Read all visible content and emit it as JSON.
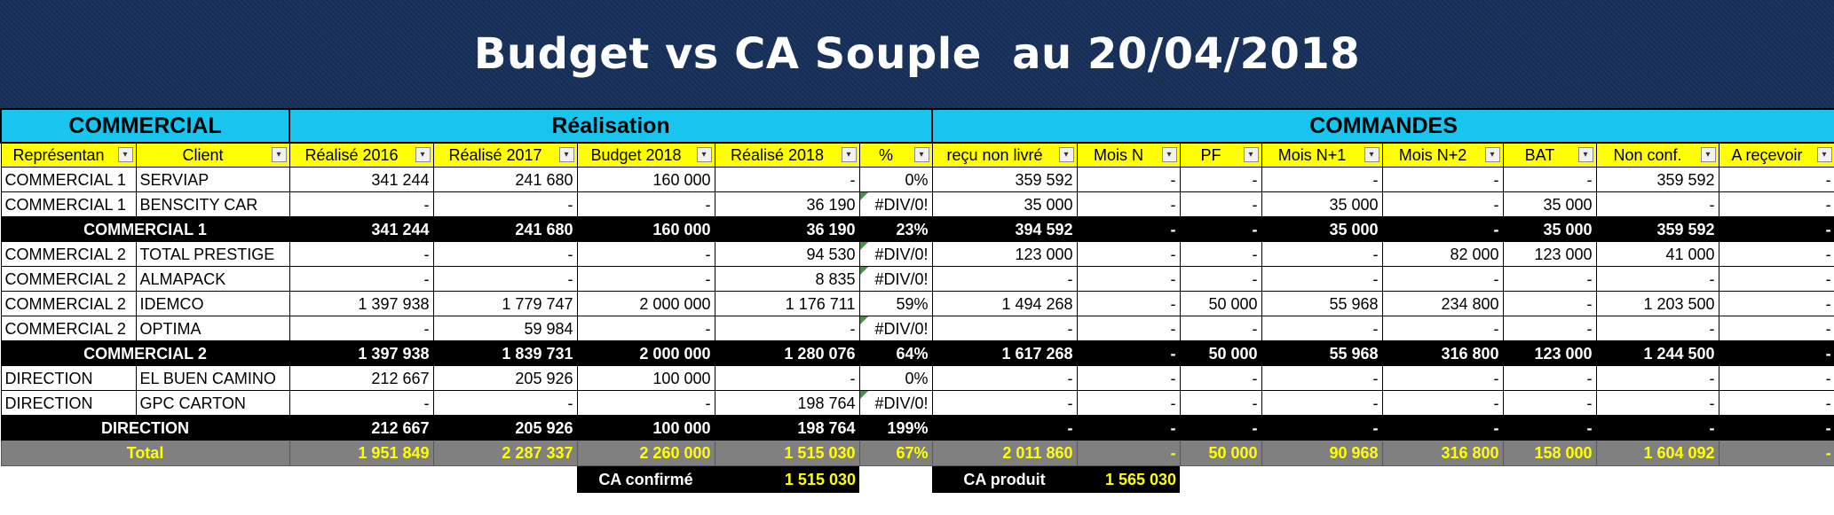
{
  "title": "Budget vs CA Souple  au 20/04/2018",
  "groups": {
    "commercial": "COMMERCIAL",
    "realisation": "Réalisation",
    "commandes": "COMMANDES"
  },
  "headers": [
    "Représentan",
    "Client",
    "Réalisé 2016",
    "Réalisé 2017",
    "Budget 2018",
    "Réalisé 2018",
    "%",
    "reçu non livré",
    "Mois N",
    "PF",
    "Mois N+1",
    "Mois N+2",
    "BAT",
    "Non conf.",
    "A reçevoir"
  ],
  "filter_icon": "dropdown-arrow-icon",
  "rows": [
    {
      "type": "data",
      "cells": [
        "COMMERCIAL 1",
        "SERVIAP",
        "341 244",
        "241 680",
        "160 000",
        "-",
        "0%",
        "359 592",
        "-",
        "-",
        "-",
        "-",
        "-",
        "359 592",
        "-"
      ]
    },
    {
      "type": "data",
      "cells": [
        "COMMERCIAL 1",
        "BENSCITY CAR",
        "-",
        "-",
        "-",
        "36 190",
        "#DIV/0!",
        "35 000",
        "-",
        "-",
        "35 000",
        "-",
        "35 000",
        "-",
        "-"
      ]
    },
    {
      "type": "subtotal",
      "label": "COMMERCIAL 1",
      "cells": [
        "341 244",
        "241 680",
        "160 000",
        "36 190",
        "23%",
        "394 592",
        "-",
        "-",
        "35 000",
        "-",
        "35 000",
        "359 592",
        "-"
      ]
    },
    {
      "type": "data",
      "cells": [
        "COMMERCIAL 2",
        "TOTAL PRESTIGE",
        "-",
        "-",
        "-",
        "94 530",
        "#DIV/0!",
        "123 000",
        "-",
        "-",
        "-",
        "82 000",
        "123 000",
        "41 000",
        "-"
      ]
    },
    {
      "type": "data",
      "cells": [
        "COMMERCIAL 2",
        "ALMAPACK",
        "-",
        "-",
        "-",
        "8 835",
        "#DIV/0!",
        "-",
        "-",
        "-",
        "-",
        "-",
        "-",
        "-",
        "-"
      ]
    },
    {
      "type": "data",
      "cells": [
        "COMMERCIAL 2",
        "IDEMCO",
        "1 397 938",
        "1 779 747",
        "2 000 000",
        "1 176 711",
        "59%",
        "1 494 268",
        "-",
        "50 000",
        "55 968",
        "234 800",
        "-",
        "1 203 500",
        "-"
      ]
    },
    {
      "type": "data",
      "cells": [
        "COMMERCIAL 2",
        "OPTIMA",
        "-",
        "59 984",
        "-",
        "-",
        "#DIV/0!",
        "-",
        "-",
        "-",
        "-",
        "-",
        "-",
        "-",
        "-"
      ]
    },
    {
      "type": "subtotal",
      "label": "COMMERCIAL 2",
      "cells": [
        "1 397 938",
        "1 839 731",
        "2 000 000",
        "1 280 076",
        "64%",
        "1 617 268",
        "-",
        "50 000",
        "55 968",
        "316 800",
        "123 000",
        "1 244 500",
        "-"
      ]
    },
    {
      "type": "data",
      "cells": [
        "DIRECTION",
        "EL BUEN CAMINO",
        "212 667",
        "205 926",
        "100 000",
        "-",
        "0%",
        "-",
        "-",
        "-",
        "-",
        "-",
        "-",
        "-",
        "-"
      ]
    },
    {
      "type": "data",
      "cells": [
        "DIRECTION",
        "GPC CARTON",
        "-",
        "-",
        "-",
        "198 764",
        "#DIV/0!",
        "-",
        "-",
        "-",
        "-",
        "-",
        "-",
        "-",
        "-"
      ]
    },
    {
      "type": "subtotal",
      "label": "DIRECTION",
      "cells": [
        "212 667",
        "205 926",
        "100 000",
        "198 764",
        "199%",
        "-",
        "-",
        "-",
        "-",
        "-",
        "-",
        "-",
        "-"
      ]
    },
    {
      "type": "total",
      "label": "Total",
      "cells": [
        "1 951 849",
        "2 287 337",
        "2 260 000",
        "1 515 030",
        "67%",
        "2 011 860",
        "-",
        "50 000",
        "90 968",
        "316 800",
        "158 000",
        "1 604 092",
        "-"
      ]
    }
  ],
  "footer": {
    "ca_confirme_label": "CA confirmé",
    "ca_confirme_value": "1 515 030",
    "ca_produit_label": "CA produit",
    "ca_produit_value": "1 565 030"
  }
}
